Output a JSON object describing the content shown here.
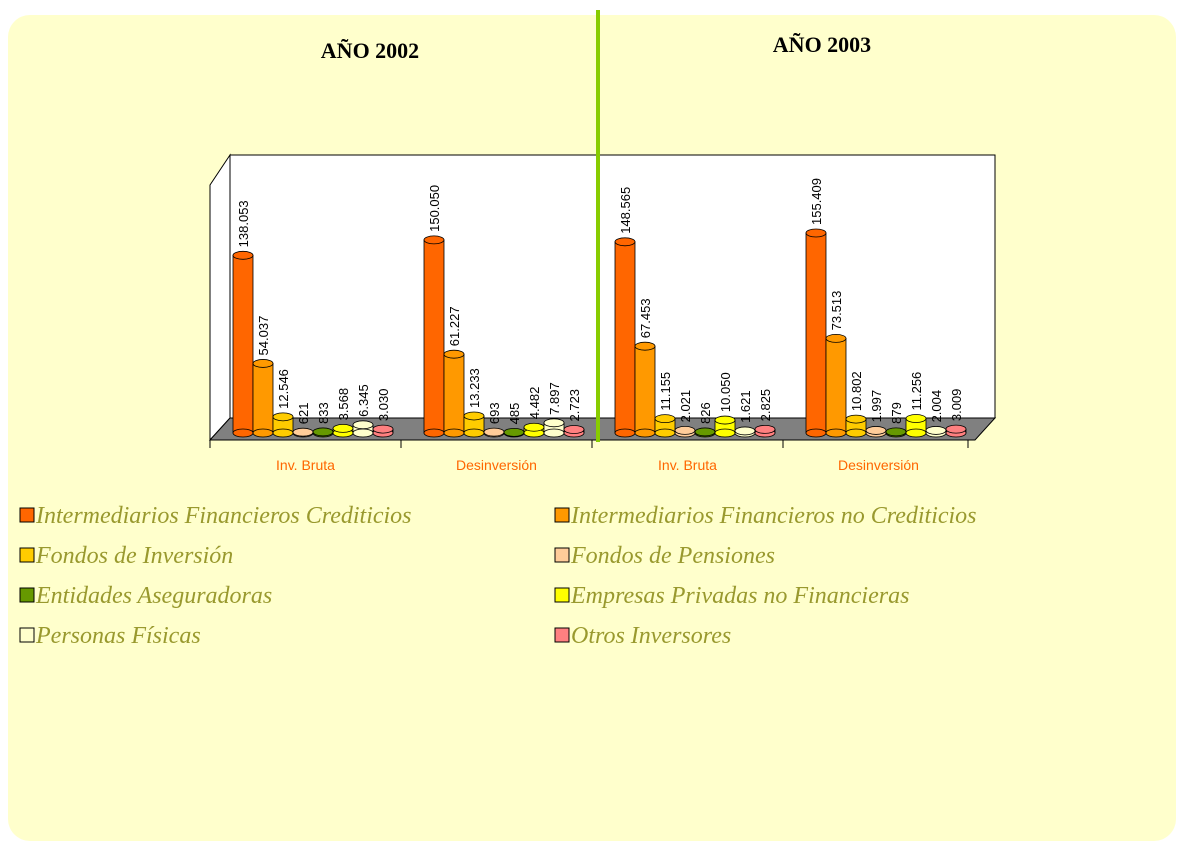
{
  "chart_data": {
    "type": "bar",
    "titles": [
      "AÑO 2002",
      "AÑO 2003"
    ],
    "categories": [
      "Inv. Bruta",
      "Desinversión",
      "Inv. Bruta",
      "Desinversión"
    ],
    "series": [
      {
        "name": "Intermediarios Financieros Crediticios",
        "color": "#ff6600",
        "values": [
          138053,
          150050,
          148565,
          155409
        ],
        "value_labels": [
          "138.053",
          "150.050",
          "148.565",
          "155.409"
        ]
      },
      {
        "name": "Intermediarios Financieros no Crediticios",
        "color": "#ff9900",
        "values": [
          54037,
          61227,
          67453,
          73513
        ],
        "value_labels": [
          "54.037",
          "61.227",
          "67.453",
          "73.513"
        ]
      },
      {
        "name": "Fondos de Inversión",
        "color": "#ffcc00",
        "values": [
          12546,
          13233,
          11155,
          10802
        ],
        "value_labels": [
          "12.546",
          "13.233",
          "11.155",
          "10.802"
        ]
      },
      {
        "name": "Fondos de Pensiones",
        "color": "#ffcc99",
        "values": [
          621,
          693,
          2021,
          1997
        ],
        "value_labels": [
          "621",
          "693",
          "2.021",
          "1.997"
        ]
      },
      {
        "name": "Entidades Aseguradoras",
        "color": "#669900",
        "values": [
          833,
          485,
          826,
          879
        ],
        "value_labels": [
          "833",
          "485",
          "826",
          "879"
        ]
      },
      {
        "name": "Empresas Privadas no Financieras",
        "color": "#ffff00",
        "values": [
          3568,
          4482,
          10050,
          11256
        ],
        "value_labels": [
          "3.568",
          "4.482",
          "10.050",
          "11.256"
        ]
      },
      {
        "name": "Personas Físicas",
        "color": "#ffffcc",
        "values": [
          6345,
          7897,
          1621,
          2004
        ],
        "value_labels": [
          "6.345",
          "7.897",
          "1.621",
          "2.004"
        ]
      },
      {
        "name": "Otros Inversores",
        "color": "#ff8080",
        "values": [
          3030,
          2723,
          2825,
          3009
        ],
        "value_labels": [
          "3.030",
          "2.723",
          "2.825",
          "3.009"
        ]
      }
    ]
  }
}
